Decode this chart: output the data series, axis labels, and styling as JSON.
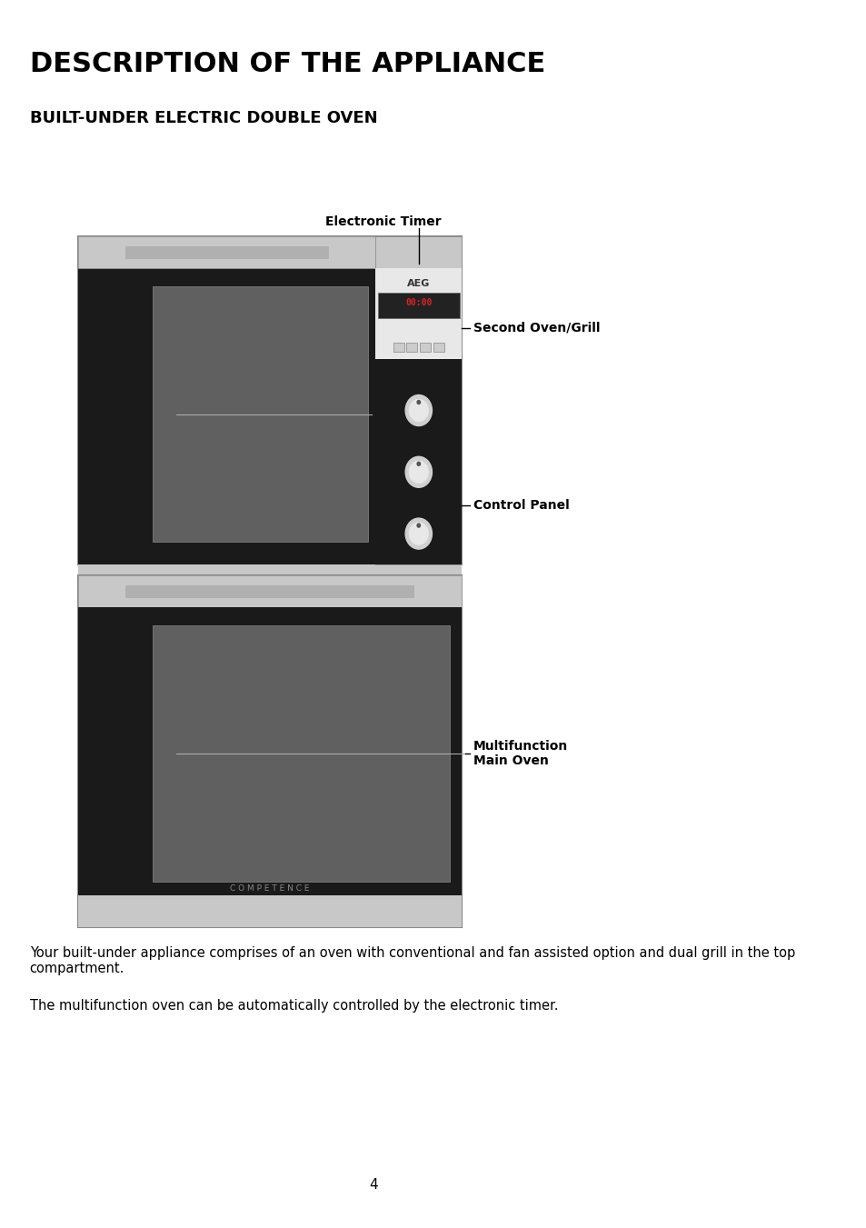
{
  "title": "DESCRIPTION OF THE APPLIANCE",
  "subtitle": "BUILT-UNDER ELECTRIC DOUBLE OVEN",
  "label_electronic_timer": "Electronic Timer",
  "label_second_oven": "Second Oven/Grill",
  "label_control_panel": "Control Panel",
  "label_multifunction": "Multifunction\nMain Oven",
  "label_competence": "C O M P E T E N C E",
  "label_aeg": "AEG",
  "para1": "Your built-under appliance comprises of an oven with conventional and fan assisted option and dual grill in the top\ncompartment.",
  "para2": "The multifunction oven can be automatically controlled by the electronic timer.",
  "page_number": "4",
  "bg_color": "#ffffff",
  "text_color": "#000000",
  "oven_outer_color": "#c8c8c8",
  "oven_black_color": "#1a1a1a",
  "oven_glass_color": "#606060",
  "control_panel_bg": "#1a1a1a",
  "timer_bg": "#f0f0f0"
}
